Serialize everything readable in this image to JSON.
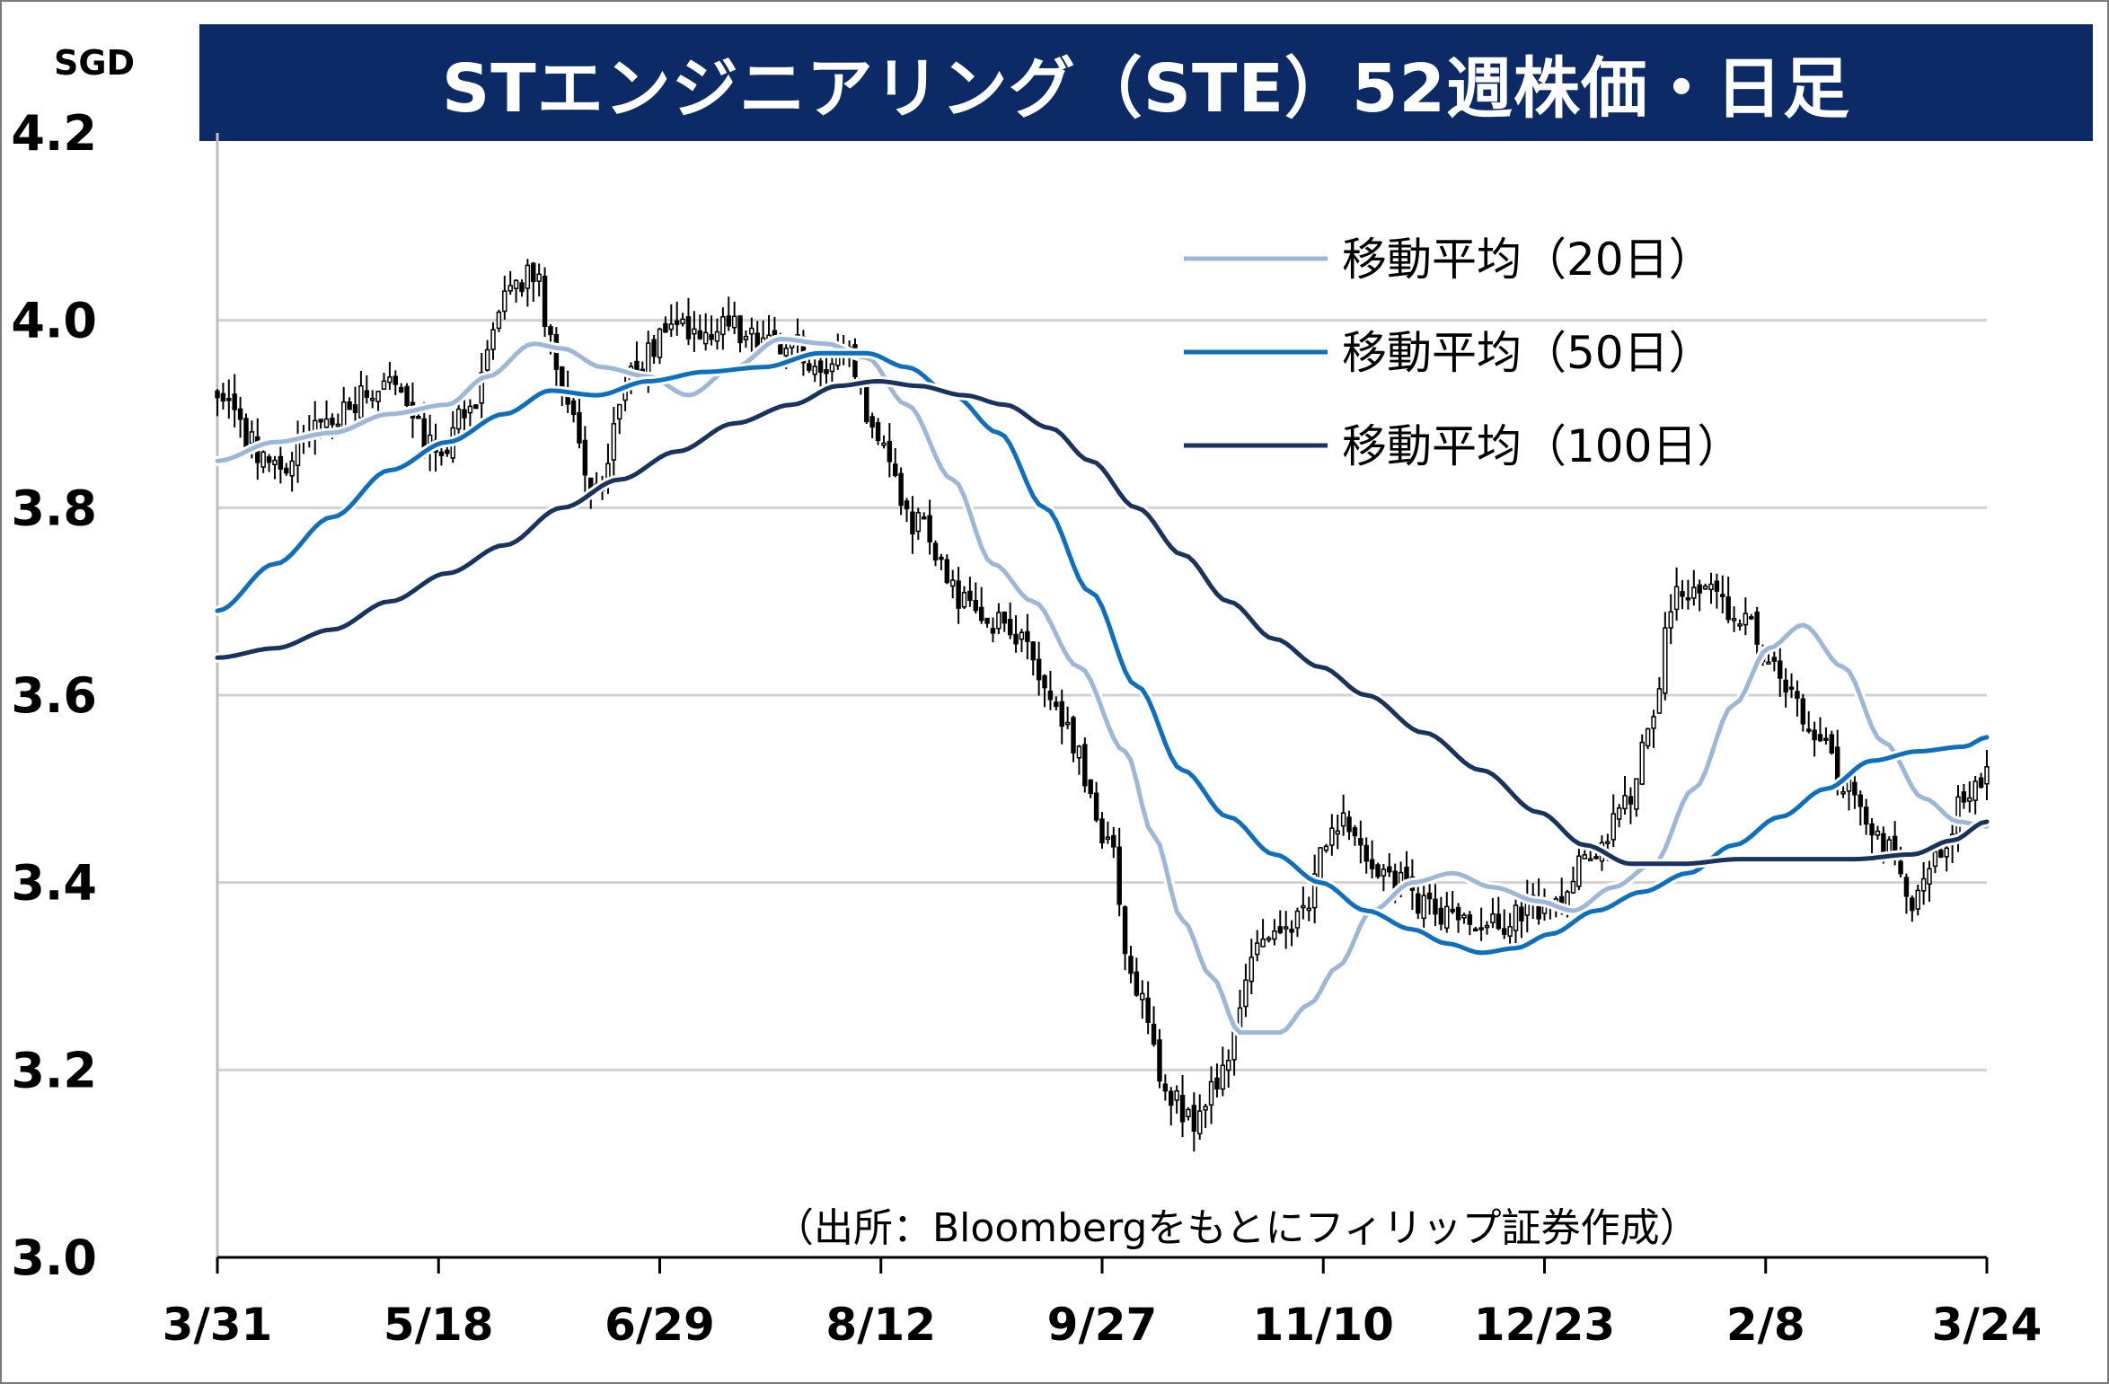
{
  "title": "STエンジニアリング（STE）52週株価・日足",
  "unit": "SGD",
  "source": "（出所：Bloombergをもとにフィリップ証券作成）",
  "colors": {
    "title_bg": "#0b2a66",
    "ma20": "#9db7d9",
    "ma50": "#0f6fbf",
    "ma100": "#17335e",
    "grid": "#d2d2d2",
    "candle": "#000000"
  },
  "chart_data": {
    "type": "candlestick",
    "title": "STエンジニアリング（STE）52週株価・日足",
    "ylabel": "SGD",
    "ylim": [
      3.0,
      4.2
    ],
    "yticks": [
      "4.2",
      "4.0",
      "3.8",
      "3.6",
      "3.4",
      "3.2",
      "3.0"
    ],
    "x_tick_labels": [
      "3/31",
      "5/18",
      "6/29",
      "8/12",
      "9/27",
      "11/10",
      "12/23",
      "2/8",
      "3/24"
    ],
    "grid": "horizontal",
    "legend_position": "top-right",
    "legend": [
      {
        "label": "移動平均（20日）",
        "key": "ma20"
      },
      {
        "label": "移動平均（50日）",
        "key": "ma50"
      },
      {
        "label": "移動平均（100日）",
        "key": "ma100"
      }
    ],
    "price_anchors": [
      {
        "x": 0,
        "v": 3.92
      },
      {
        "x": 10,
        "v": 3.84
      },
      {
        "x": 20,
        "v": 3.9
      },
      {
        "x": 30,
        "v": 3.93
      },
      {
        "x": 38,
        "v": 3.86
      },
      {
        "x": 45,
        "v": 3.92
      },
      {
        "x": 50,
        "v": 4.02
      },
      {
        "x": 55,
        "v": 4.05
      },
      {
        "x": 60,
        "v": 3.93
      },
      {
        "x": 66,
        "v": 3.82
      },
      {
        "x": 72,
        "v": 3.95
      },
      {
        "x": 80,
        "v": 3.99
      },
      {
        "x": 90,
        "v": 3.99
      },
      {
        "x": 100,
        "v": 3.97
      },
      {
        "x": 105,
        "v": 3.95
      },
      {
        "x": 110,
        "v": 3.96
      },
      {
        "x": 115,
        "v": 3.87
      },
      {
        "x": 122,
        "v": 3.78
      },
      {
        "x": 130,
        "v": 3.7
      },
      {
        "x": 140,
        "v": 3.66
      },
      {
        "x": 148,
        "v": 3.56
      },
      {
        "x": 155,
        "v": 3.44
      },
      {
        "x": 160,
        "v": 3.28
      },
      {
        "x": 165,
        "v": 3.18
      },
      {
        "x": 170,
        "v": 3.14
      },
      {
        "x": 175,
        "v": 3.2
      },
      {
        "x": 180,
        "v": 3.32
      },
      {
        "x": 188,
        "v": 3.36
      },
      {
        "x": 195,
        "v": 3.47
      },
      {
        "x": 200,
        "v": 3.43
      },
      {
        "x": 205,
        "v": 3.4
      },
      {
        "x": 210,
        "v": 3.38
      },
      {
        "x": 218,
        "v": 3.35
      },
      {
        "x": 225,
        "v": 3.36
      },
      {
        "x": 232,
        "v": 3.38
      },
      {
        "x": 238,
        "v": 3.42
      },
      {
        "x": 245,
        "v": 3.48
      },
      {
        "x": 250,
        "v": 3.58
      },
      {
        "x": 253,
        "v": 3.7
      },
      {
        "x": 258,
        "v": 3.72
      },
      {
        "x": 265,
        "v": 3.68
      },
      {
        "x": 272,
        "v": 3.62
      },
      {
        "x": 278,
        "v": 3.56
      },
      {
        "x": 284,
        "v": 3.5
      },
      {
        "x": 290,
        "v": 3.44
      },
      {
        "x": 296,
        "v": 3.38
      },
      {
        "x": 300,
        "v": 3.44
      },
      {
        "x": 305,
        "v": 3.5
      },
      {
        "x": 308,
        "v": 3.51
      }
    ],
    "ma20": [
      {
        "x": 0,
        "v": 3.85
      },
      {
        "x": 10,
        "v": 3.87
      },
      {
        "x": 20,
        "v": 3.88
      },
      {
        "x": 30,
        "v": 3.9
      },
      {
        "x": 40,
        "v": 3.91
      },
      {
        "x": 47,
        "v": 3.94
      },
      {
        "x": 55,
        "v": 3.975
      },
      {
        "x": 60,
        "v": 3.97
      },
      {
        "x": 67,
        "v": 3.95
      },
      {
        "x": 75,
        "v": 3.94
      },
      {
        "x": 82,
        "v": 3.92
      },
      {
        "x": 90,
        "v": 3.95
      },
      {
        "x": 98,
        "v": 3.98
      },
      {
        "x": 106,
        "v": 3.975
      },
      {
        "x": 113,
        "v": 3.96
      },
      {
        "x": 120,
        "v": 3.91
      },
      {
        "x": 128,
        "v": 3.83
      },
      {
        "x": 135,
        "v": 3.74
      },
      {
        "x": 142,
        "v": 3.7
      },
      {
        "x": 150,
        "v": 3.63
      },
      {
        "x": 158,
        "v": 3.54
      },
      {
        "x": 163,
        "v": 3.45
      },
      {
        "x": 168,
        "v": 3.36
      },
      {
        "x": 173,
        "v": 3.3
      },
      {
        "x": 178,
        "v": 3.24
      },
      {
        "x": 185,
        "v": 3.24
      },
      {
        "x": 190,
        "v": 3.27
      },
      {
        "x": 195,
        "v": 3.31
      },
      {
        "x": 201,
        "v": 3.37
      },
      {
        "x": 208,
        "v": 3.4
      },
      {
        "x": 215,
        "v": 3.41
      },
      {
        "x": 222,
        "v": 3.395
      },
      {
        "x": 230,
        "v": 3.38
      },
      {
        "x": 236,
        "v": 3.37
      },
      {
        "x": 243,
        "v": 3.395
      },
      {
        "x": 250,
        "v": 3.42
      },
      {
        "x": 257,
        "v": 3.5
      },
      {
        "x": 264,
        "v": 3.59
      },
      {
        "x": 270,
        "v": 3.65
      },
      {
        "x": 276,
        "v": 3.675
      },
      {
        "x": 283,
        "v": 3.63
      },
      {
        "x": 290,
        "v": 3.55
      },
      {
        "x": 297,
        "v": 3.49
      },
      {
        "x": 303,
        "v": 3.465
      },
      {
        "x": 308,
        "v": 3.46
      }
    ],
    "ma50": [
      {
        "x": 0,
        "v": 3.69
      },
      {
        "x": 10,
        "v": 3.74
      },
      {
        "x": 20,
        "v": 3.79
      },
      {
        "x": 30,
        "v": 3.84
      },
      {
        "x": 40,
        "v": 3.87
      },
      {
        "x": 50,
        "v": 3.9
      },
      {
        "x": 58,
        "v": 3.925
      },
      {
        "x": 66,
        "v": 3.92
      },
      {
        "x": 75,
        "v": 3.935
      },
      {
        "x": 85,
        "v": 3.945
      },
      {
        "x": 95,
        "v": 3.95
      },
      {
        "x": 105,
        "v": 3.965
      },
      {
        "x": 113,
        "v": 3.965
      },
      {
        "x": 120,
        "v": 3.95
      },
      {
        "x": 128,
        "v": 3.92
      },
      {
        "x": 136,
        "v": 3.88
      },
      {
        "x": 144,
        "v": 3.8
      },
      {
        "x": 152,
        "v": 3.71
      },
      {
        "x": 160,
        "v": 3.61
      },
      {
        "x": 168,
        "v": 3.52
      },
      {
        "x": 176,
        "v": 3.47
      },
      {
        "x": 184,
        "v": 3.43
      },
      {
        "x": 192,
        "v": 3.4
      },
      {
        "x": 200,
        "v": 3.37
      },
      {
        "x": 208,
        "v": 3.35
      },
      {
        "x": 214,
        "v": 3.335
      },
      {
        "x": 220,
        "v": 3.325
      },
      {
        "x": 226,
        "v": 3.33
      },
      {
        "x": 232,
        "v": 3.345
      },
      {
        "x": 240,
        "v": 3.37
      },
      {
        "x": 248,
        "v": 3.39
      },
      {
        "x": 256,
        "v": 3.41
      },
      {
        "x": 264,
        "v": 3.44
      },
      {
        "x": 272,
        "v": 3.47
      },
      {
        "x": 280,
        "v": 3.5
      },
      {
        "x": 288,
        "v": 3.53
      },
      {
        "x": 296,
        "v": 3.54
      },
      {
        "x": 304,
        "v": 3.545
      },
      {
        "x": 308,
        "v": 3.555
      }
    ],
    "ma100": [
      {
        "x": 0,
        "v": 3.64
      },
      {
        "x": 10,
        "v": 3.65
      },
      {
        "x": 20,
        "v": 3.67
      },
      {
        "x": 30,
        "v": 3.7
      },
      {
        "x": 40,
        "v": 3.73
      },
      {
        "x": 50,
        "v": 3.76
      },
      {
        "x": 60,
        "v": 3.8
      },
      {
        "x": 70,
        "v": 3.83
      },
      {
        "x": 80,
        "v": 3.86
      },
      {
        "x": 90,
        "v": 3.89
      },
      {
        "x": 100,
        "v": 3.91
      },
      {
        "x": 108,
        "v": 3.93
      },
      {
        "x": 115,
        "v": 3.935
      },
      {
        "x": 122,
        "v": 3.93
      },
      {
        "x": 130,
        "v": 3.92
      },
      {
        "x": 137,
        "v": 3.91
      },
      {
        "x": 145,
        "v": 3.885
      },
      {
        "x": 152,
        "v": 3.85
      },
      {
        "x": 160,
        "v": 3.8
      },
      {
        "x": 168,
        "v": 3.75
      },
      {
        "x": 176,
        "v": 3.7
      },
      {
        "x": 184,
        "v": 3.66
      },
      {
        "x": 192,
        "v": 3.63
      },
      {
        "x": 200,
        "v": 3.6
      },
      {
        "x": 210,
        "v": 3.56
      },
      {
        "x": 220,
        "v": 3.52
      },
      {
        "x": 230,
        "v": 3.475
      },
      {
        "x": 238,
        "v": 3.44
      },
      {
        "x": 246,
        "v": 3.42
      },
      {
        "x": 255,
        "v": 3.42
      },
      {
        "x": 265,
        "v": 3.425
      },
      {
        "x": 275,
        "v": 3.425
      },
      {
        "x": 285,
        "v": 3.425
      },
      {
        "x": 295,
        "v": 3.43
      },
      {
        "x": 302,
        "v": 3.445
      },
      {
        "x": 308,
        "v": 3.465
      }
    ]
  }
}
